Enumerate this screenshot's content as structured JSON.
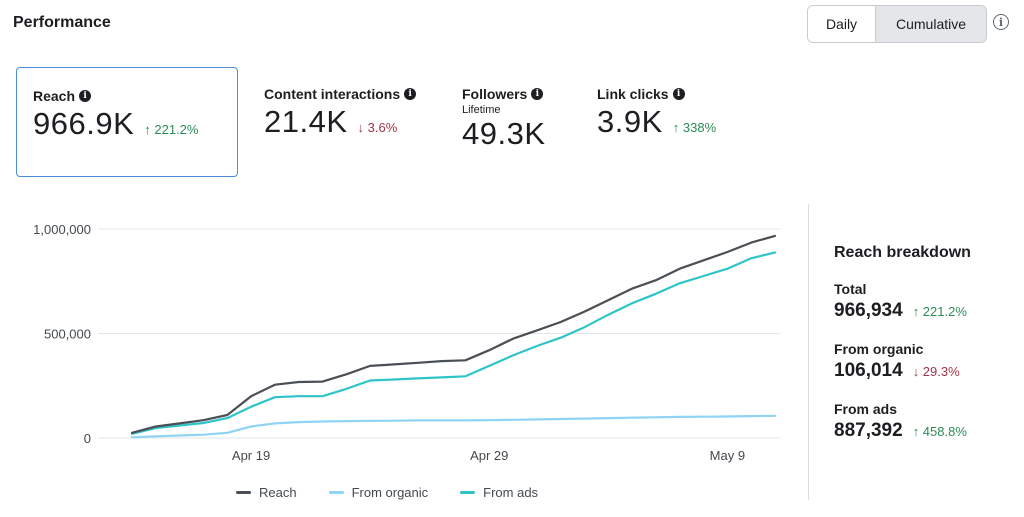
{
  "header": {
    "title": "Performance",
    "toggle_daily": "Daily",
    "toggle_cumulative": "Cumulative",
    "info_glyph": "i"
  },
  "metrics": [
    {
      "label": "Reach",
      "sublabel": "",
      "value": "966.9K",
      "delta": "↑ 221.2%",
      "direction": "up",
      "selected": true
    },
    {
      "label": "Content interactions",
      "sublabel": "",
      "value": "21.4K",
      "delta": "↓ 3.6%",
      "direction": "down"
    },
    {
      "label": "Followers",
      "sublabel": "Lifetime",
      "value": "49.3K",
      "delta": "",
      "direction": ""
    },
    {
      "label": "Link clicks",
      "sublabel": "",
      "value": "3.9K",
      "delta": "↑ 338%",
      "direction": "up"
    }
  ],
  "chart_data": {
    "type": "line",
    "x_ticks": [
      "Apr 19",
      "Apr 29",
      "May 9"
    ],
    "y_ticks": [
      "1,000,000",
      "500,000",
      "0"
    ],
    "ylim": [
      0,
      1000000
    ],
    "legend_position": "bottom",
    "series": [
      {
        "name": "Reach",
        "color": "#4b4f56",
        "values": [
          25000,
          55000,
          70000,
          85000,
          110000,
          200000,
          255000,
          268000,
          270000,
          305000,
          345000,
          352000,
          360000,
          368000,
          372000,
          420000,
          475000,
          515000,
          555000,
          605000,
          660000,
          715000,
          755000,
          810000,
          850000,
          890000,
          935000,
          966934
        ]
      },
      {
        "name": "From organic",
        "color": "#8fd3f5",
        "values": [
          3000,
          8000,
          12000,
          16000,
          25000,
          55000,
          70000,
          76000,
          79000,
          81000,
          82000,
          83000,
          84000,
          84000,
          84000,
          85000,
          87000,
          89000,
          91000,
          93000,
          95000,
          97000,
          99000,
          101000,
          102000,
          103000,
          105000,
          106014
        ]
      },
      {
        "name": "From ads",
        "color": "#2ec4c8",
        "values": [
          20000,
          48000,
          60000,
          72000,
          95000,
          150000,
          195000,
          200000,
          200000,
          235000,
          275000,
          280000,
          285000,
          290000,
          295000,
          345000,
          395000,
          440000,
          480000,
          530000,
          590000,
          645000,
          690000,
          740000,
          775000,
          810000,
          860000,
          887392
        ]
      }
    ]
  },
  "breakdown": {
    "title": "Reach breakdown",
    "items": [
      {
        "label": "Total",
        "value": "966,934",
        "delta": "↑ 221.2%",
        "direction": "up"
      },
      {
        "label": "From organic",
        "value": "106,014",
        "delta": "↓ 29.3%",
        "direction": "down"
      },
      {
        "label": "From ads",
        "value": "887,392",
        "delta": "↑ 458.8%",
        "direction": "up"
      }
    ]
  }
}
